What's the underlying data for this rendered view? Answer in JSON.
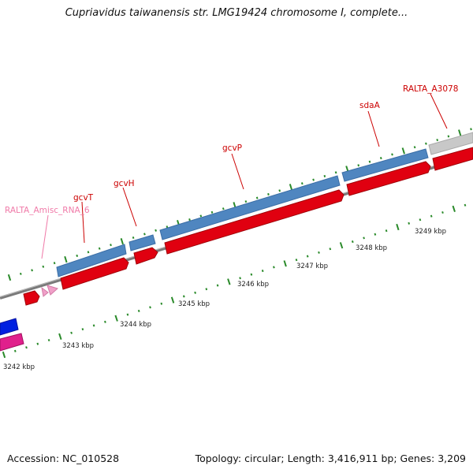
{
  "title": "Cupriavidus taiwanensis str. LMG19424 chromosome I, complete...",
  "footer": {
    "accession": "Accession: NC_010528",
    "summary": "Topology: circular; Length: 3,416,911 bp; Genes: 3,209"
  },
  "colors": {
    "forward_gene": "#e00010",
    "reverse_gene": "#4f86c0",
    "pseudo_gene": "#c8c8c8",
    "misc_rna": "#f0a0c8",
    "cds_blue": "#0020e0",
    "cds_magenta": "#e0208c",
    "gene_label": "#cc0000",
    "rna_label": "#f07aa8",
    "tick": "#2a8a2a",
    "backbone": "#888888"
  },
  "scale_labels": [
    "3242 kbp",
    "3243 kbp",
    "3244 kbp",
    "3245 kbp",
    "3246 kbp",
    "3247 kbp",
    "3248 kbp",
    "3249 kbp"
  ],
  "gene_labels": [
    {
      "id": "rna",
      "text": "RALTA_Amisc_RNA_6",
      "type": "misc_rna"
    },
    {
      "id": "gcvT",
      "text": "gcvT",
      "type": "gene"
    },
    {
      "id": "gcvH",
      "text": "gcvH",
      "type": "gene"
    },
    {
      "id": "gcvP",
      "text": "gcvP",
      "type": "gene"
    },
    {
      "id": "sdaA",
      "text": "sdaA",
      "type": "gene"
    },
    {
      "id": "a3078",
      "text": "RALTA_A3078",
      "type": "gene"
    }
  ]
}
